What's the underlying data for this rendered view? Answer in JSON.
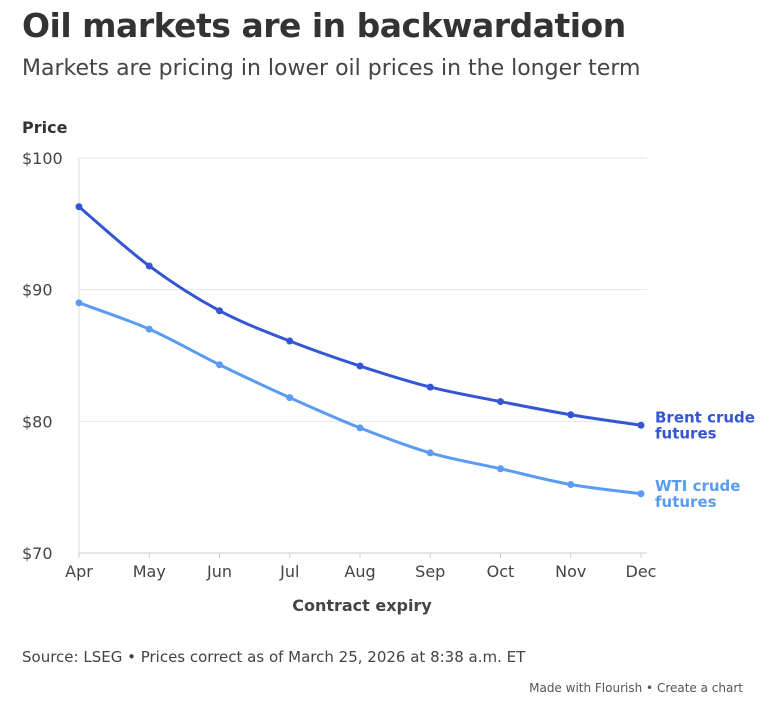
{
  "title": "Oil markets are in backwardation",
  "subtitle": "Markets are pricing in lower oil prices in the longer term",
  "source": "Source: LSEG • Prices correct as of March 25, 2026 at 8:38 a.m. ET",
  "footer": {
    "made_with": "Made with Flourish",
    "separator": " • ",
    "create": "Create a chart"
  },
  "chart_data": {
    "type": "line",
    "title": "Oil markets are in backwardation",
    "xlabel": "Contract expiry",
    "ylabel": "Price",
    "categories": [
      "Apr",
      "May",
      "Jun",
      "Jul",
      "Aug",
      "Sep",
      "Oct",
      "Nov",
      "Dec"
    ],
    "ylim": [
      70,
      100
    ],
    "yticks": [
      100,
      90,
      80,
      70
    ],
    "ytick_labels": [
      "$100",
      "$90",
      "$80",
      "$70"
    ],
    "grid": true,
    "legend": "direct labels right",
    "series": [
      {
        "name": "Brent crude futures",
        "label_lines": [
          "Brent crude",
          "futures"
        ],
        "color": "#3556d4",
        "values": [
          96.3,
          91.8,
          88.4,
          86.1,
          84.2,
          82.6,
          81.5,
          80.5,
          79.7
        ]
      },
      {
        "name": "WTI crude futures",
        "label_lines": [
          "WTI crude",
          "futures"
        ],
        "color": "#5b9cf2",
        "values": [
          89.0,
          87.0,
          84.3,
          81.8,
          79.5,
          77.6,
          76.4,
          75.2,
          74.5
        ]
      }
    ]
  }
}
